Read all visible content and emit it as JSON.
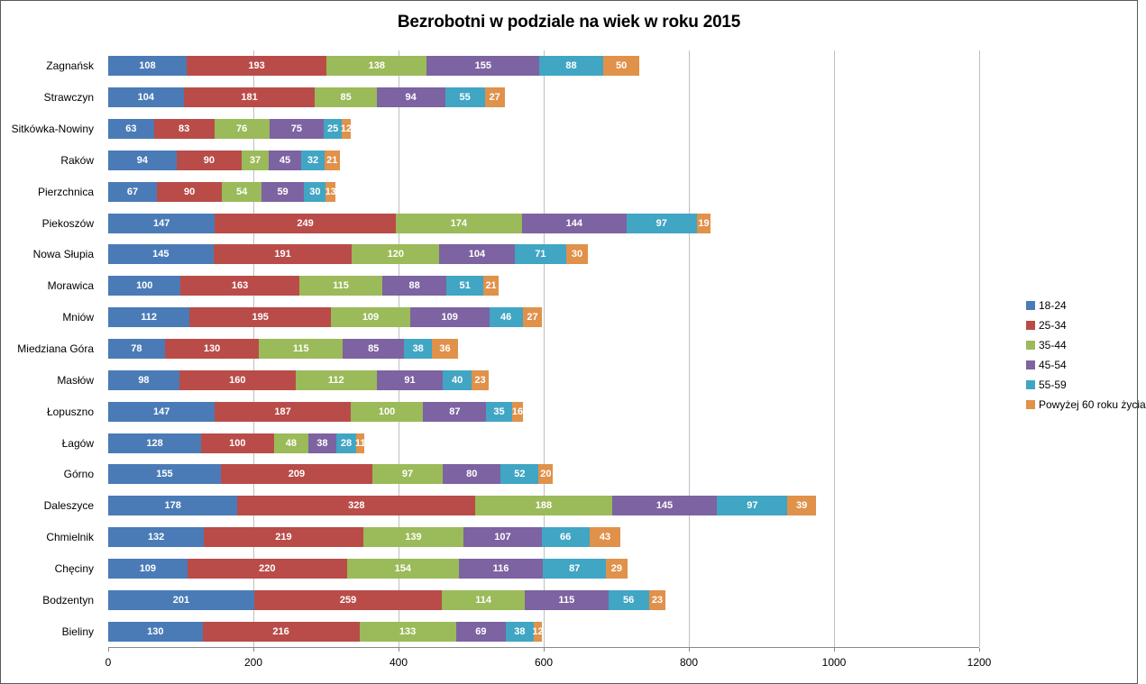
{
  "chart_data": {
    "type": "bar",
    "orientation": "horizontal",
    "stacked": true,
    "title": "Bezrobotni w podziale na wiek w roku 2015",
    "xlabel": "",
    "ylabel": "",
    "xlim": [
      0,
      1200
    ],
    "x_ticks": [
      0,
      200,
      400,
      600,
      800,
      1000,
      1200
    ],
    "grid": "vertical",
    "legend_position": "right",
    "categories": [
      "Zagnańsk",
      "Strawczyn",
      "Sitkówka-Nowiny",
      "Raków",
      "Pierzchnica",
      "Piekoszów",
      "Nowa Słupia",
      "Morawica",
      "Mniów",
      "Miedziana Góra",
      "Masłów",
      "Łopuszno",
      "Łagów",
      "Górno",
      "Daleszyce",
      "Chmielnik",
      "Chęciny",
      "Bodzentyn",
      "Bieliny"
    ],
    "series": [
      {
        "name": "18-24",
        "color": "#4A7BB7",
        "values": [
          108,
          104,
          63,
          94,
          67,
          147,
          145,
          100,
          112,
          78,
          98,
          147,
          128,
          155,
          178,
          132,
          109,
          201,
          130
        ]
      },
      {
        "name": "25-34",
        "color": "#B94C49",
        "values": [
          193,
          181,
          83,
          90,
          90,
          249,
          191,
          163,
          195,
          130,
          160,
          187,
          100,
          209,
          328,
          219,
          220,
          259,
          216
        ]
      },
      {
        "name": "35-44",
        "color": "#9BBA59",
        "values": [
          138,
          85,
          76,
          37,
          54,
          174,
          120,
          115,
          109,
          115,
          112,
          100,
          48,
          97,
          188,
          139,
          154,
          114,
          133
        ]
      },
      {
        "name": "45-54",
        "color": "#7D63A1",
        "values": [
          155,
          94,
          75,
          45,
          59,
          144,
          104,
          88,
          109,
          85,
          91,
          87,
          38,
          80,
          145,
          107,
          116,
          115,
          69
        ]
      },
      {
        "name": "55-59",
        "color": "#41A5C4",
        "values": [
          88,
          55,
          25,
          32,
          30,
          97,
          71,
          51,
          46,
          38,
          40,
          35,
          28,
          52,
          97,
          66,
          87,
          56,
          38
        ]
      },
      {
        "name": "Powyżej 60 roku życia",
        "color": "#E0914A",
        "values": [
          50,
          27,
          12,
          21,
          13,
          19,
          30,
          21,
          27,
          36,
          23,
          16,
          11,
          20,
          39,
          43,
          29,
          23,
          12
        ]
      }
    ],
    "colors": {
      "gridline": "#bfbfbf",
      "axis_line": "#898989",
      "bar_value_label": "#ffffff",
      "text": "#000000"
    }
  }
}
